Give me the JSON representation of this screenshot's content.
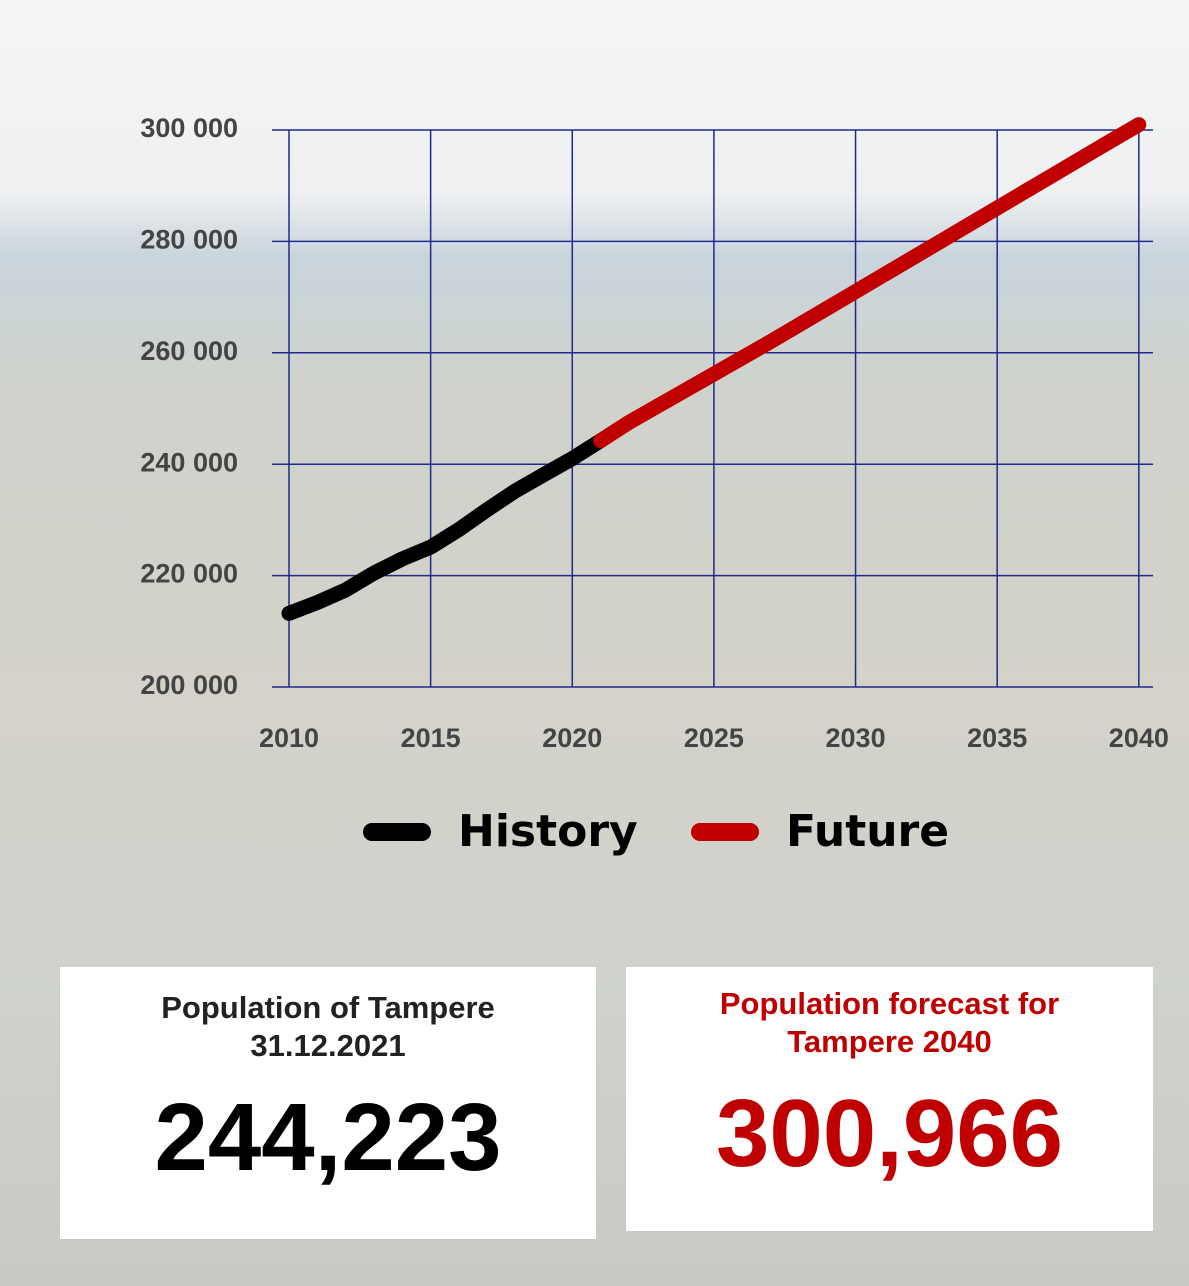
{
  "chart_data": {
    "type": "line",
    "x": [
      2010,
      2011,
      2012,
      2013,
      2014,
      2015,
      2016,
      2017,
      2018,
      2019,
      2020,
      2021,
      2022,
      2023,
      2024,
      2025,
      2026,
      2027,
      2028,
      2029,
      2030,
      2031,
      2032,
      2033,
      2034,
      2035,
      2036,
      2037,
      2038,
      2039,
      2040
    ],
    "series": [
      {
        "name": "History",
        "color": "#000000",
        "values": [
          213217,
          215168,
          217421,
          220446,
          223004,
          225118,
          228274,
          231853,
          235239,
          238140,
          241009,
          244223,
          null,
          null,
          null,
          null,
          null,
          null,
          null,
          null,
          null,
          null,
          null,
          null,
          null,
          null,
          null,
          null,
          null,
          null,
          null
        ]
      },
      {
        "name": "Future",
        "color": "#c00000",
        "values": [
          null,
          null,
          null,
          null,
          null,
          null,
          null,
          null,
          null,
          null,
          null,
          244223,
          247500,
          250400,
          253300,
          256200,
          259100,
          262000,
          265000,
          268000,
          271000,
          274000,
          277000,
          280000,
          283000,
          286000,
          289000,
          292000,
          295000,
          298000,
          300966
        ]
      }
    ],
    "xlim": [
      2009.4,
      2040.5
    ],
    "xticks": [
      2010,
      2015,
      2020,
      2025,
      2030,
      2035,
      2040
    ],
    "ylim": [
      200000,
      300000
    ],
    "yticks": [
      {
        "value": 200000,
        "label": "200 000"
      },
      {
        "value": 220000,
        "label": "220 000"
      },
      {
        "value": 240000,
        "label": "240 000"
      },
      {
        "value": 260000,
        "label": "260 000"
      },
      {
        "value": 280000,
        "label": "280 000"
      },
      {
        "value": 300000,
        "label": "300 000"
      }
    ],
    "grid": true,
    "grid_color": "#1f2a8a"
  },
  "cards": [
    {
      "title": [
        "Population of Tampere",
        "31.12.2021"
      ],
      "value": "244,223",
      "color": "#000000"
    },
    {
      "title": [
        "Population forecast for",
        "Tampere 2040"
      ],
      "value": "300,966",
      "color": "#c00000"
    }
  ]
}
